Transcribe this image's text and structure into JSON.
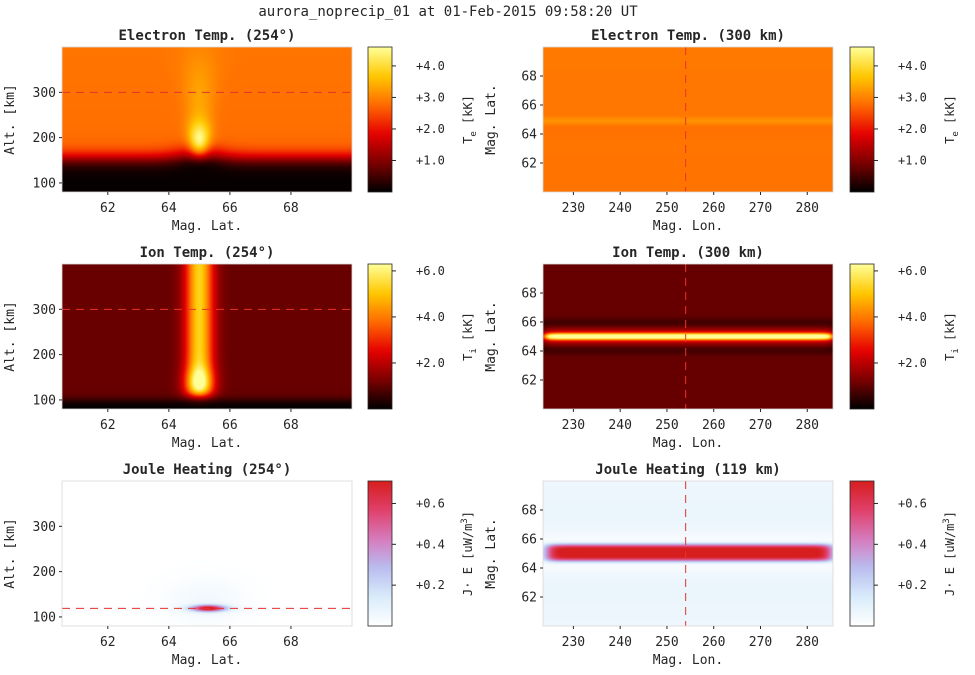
{
  "figure": {
    "suptitle": "aurora_noprecip_01 at 01-Feb-2015 09:58:20 UT"
  },
  "colormaps": {
    "hot": [
      "#000000",
      "#7a0000",
      "#e60000",
      "#ff6a00",
      "#ffc800",
      "#ffff9a"
    ],
    "joule": [
      "#ffffff",
      "#d9ecfa",
      "#b9bdf0",
      "#d67bbd",
      "#e0406a",
      "#d61e1e"
    ]
  },
  "chart_data": [
    {
      "type": "heatmap",
      "id": "te_cut",
      "title": "Electron Temp. (254°)",
      "xlabel": "Mag. Lat.",
      "ylabel": "Alt. [km]",
      "xlim": [
        60.5,
        70
      ],
      "ylim": [
        80,
        400
      ],
      "xticks": [
        62,
        64,
        66,
        68
      ],
      "yticks": [
        100,
        200,
        300
      ],
      "xtick_labels": [
        "62",
        "64",
        "66",
        "68"
      ],
      "ytick_labels": [
        "100",
        "200",
        "300"
      ],
      "colormap": "hot",
      "clim": [
        0,
        4.6
      ],
      "colorbar_label": "T",
      "colorbar_sub": "e",
      "colorbar_unit": " [kK]",
      "colorbar_ticks": [
        1,
        2,
        3,
        4
      ],
      "colorbar_tick_labels": [
        "+1.0",
        "+2.0",
        "+3.0",
        "+4.0"
      ],
      "ref_line": {
        "axis": "y",
        "value": 300,
        "color": "#e8332a"
      }
    },
    {
      "type": "heatmap",
      "id": "te_map",
      "title": "Electron Temp. (300 km)",
      "xlabel": "Mag. Lon.",
      "ylabel": "Mag. Lat.",
      "xlim": [
        223.5,
        285.5
      ],
      "ylim": [
        60,
        70
      ],
      "xticks": [
        230,
        240,
        250,
        260,
        270,
        280
      ],
      "yticks": [
        62,
        64,
        66,
        68
      ],
      "xtick_labels": [
        "230",
        "240",
        "250",
        "260",
        "270",
        "280"
      ],
      "ytick_labels": [
        "62",
        "64",
        "66",
        "68"
      ],
      "colormap": "hot",
      "clim": [
        0,
        4.6
      ],
      "colorbar_label": "T",
      "colorbar_sub": "e",
      "colorbar_unit": " [kK]",
      "colorbar_ticks": [
        1,
        2,
        3,
        4
      ],
      "colorbar_tick_labels": [
        "+1.0",
        "+2.0",
        "+3.0",
        "+4.0"
      ],
      "ref_line": {
        "axis": "x",
        "value": 254,
        "color": "#e8332a"
      }
    },
    {
      "type": "heatmap",
      "id": "ti_cut",
      "title": "Ion Temp. (254°)",
      "xlabel": "Mag. Lat.",
      "ylabel": "Alt. [km]",
      "xlim": [
        60.5,
        70
      ],
      "ylim": [
        80,
        400
      ],
      "xticks": [
        62,
        64,
        66,
        68
      ],
      "yticks": [
        100,
        200,
        300
      ],
      "xtick_labels": [
        "62",
        "64",
        "66",
        "68"
      ],
      "ytick_labels": [
        "100",
        "200",
        "300"
      ],
      "colormap": "hot",
      "clim": [
        0,
        6.3
      ],
      "colorbar_label": "T",
      "colorbar_sub": "i",
      "colorbar_unit": " [kK]",
      "colorbar_ticks": [
        2,
        4,
        6
      ],
      "colorbar_tick_labels": [
        "+2.0",
        "+4.0",
        "+6.0"
      ],
      "ref_line": {
        "axis": "y",
        "value": 300,
        "color": "#e8332a"
      }
    },
    {
      "type": "heatmap",
      "id": "ti_map",
      "title": "Ion Temp. (300 km)",
      "xlabel": "Mag. Lon.",
      "ylabel": "Mag. Lat.",
      "xlim": [
        223.5,
        285.5
      ],
      "ylim": [
        60,
        70
      ],
      "xticks": [
        230,
        240,
        250,
        260,
        270,
        280
      ],
      "yticks": [
        62,
        64,
        66,
        68
      ],
      "xtick_labels": [
        "230",
        "240",
        "250",
        "260",
        "270",
        "280"
      ],
      "ytick_labels": [
        "62",
        "64",
        "66",
        "68"
      ],
      "colormap": "hot",
      "clim": [
        0,
        6.3
      ],
      "colorbar_label": "T",
      "colorbar_sub": "i",
      "colorbar_unit": " [kK]",
      "colorbar_ticks": [
        2,
        4,
        6
      ],
      "colorbar_tick_labels": [
        "+2.0",
        "+4.0",
        "+6.0"
      ],
      "ref_line": {
        "axis": "x",
        "value": 254,
        "color": "#e8332a"
      }
    },
    {
      "type": "heatmap",
      "id": "jh_cut",
      "title": "Joule Heating (254°)",
      "xlabel": "Mag. Lat.",
      "ylabel": "Alt. [km]",
      "xlim": [
        60.5,
        70
      ],
      "ylim": [
        80,
        400
      ],
      "xticks": [
        62,
        64,
        66,
        68
      ],
      "yticks": [
        100,
        200,
        300
      ],
      "xtick_labels": [
        "62",
        "64",
        "66",
        "68"
      ],
      "ytick_labels": [
        "100",
        "200",
        "300"
      ],
      "colormap": "joule",
      "clim": [
        0,
        0.71
      ],
      "colorbar_label": "J· E [uW/m",
      "colorbar_sup": "3",
      "colorbar_unit": "]",
      "colorbar_ticks": [
        0.2,
        0.4,
        0.6
      ],
      "colorbar_tick_labels": [
        "+0.2",
        "+0.4",
        "+0.6"
      ],
      "ref_line": {
        "axis": "y",
        "value": 119,
        "color": "#e8332a"
      }
    },
    {
      "type": "heatmap",
      "id": "jh_map",
      "title": "Joule Heating (119 km)",
      "xlabel": "Mag. Lon.",
      "ylabel": "Mag. Lat.",
      "xlim": [
        223.5,
        285.5
      ],
      "ylim": [
        60,
        70
      ],
      "xticks": [
        230,
        240,
        250,
        260,
        270,
        280
      ],
      "yticks": [
        62,
        64,
        66,
        68
      ],
      "xtick_labels": [
        "230",
        "240",
        "250",
        "260",
        "270",
        "280"
      ],
      "ytick_labels": [
        "62",
        "64",
        "66",
        "68"
      ],
      "colormap": "joule",
      "clim": [
        0,
        0.71
      ],
      "colorbar_label": "J· E [uW/m",
      "colorbar_sup": "3",
      "colorbar_unit": "]",
      "colorbar_ticks": [
        0.2,
        0.4,
        0.6
      ],
      "colorbar_tick_labels": [
        "+0.2",
        "+0.4",
        "+0.6"
      ],
      "ref_line": {
        "axis": "x",
        "value": 254,
        "color": "#e8332a"
      }
    }
  ]
}
